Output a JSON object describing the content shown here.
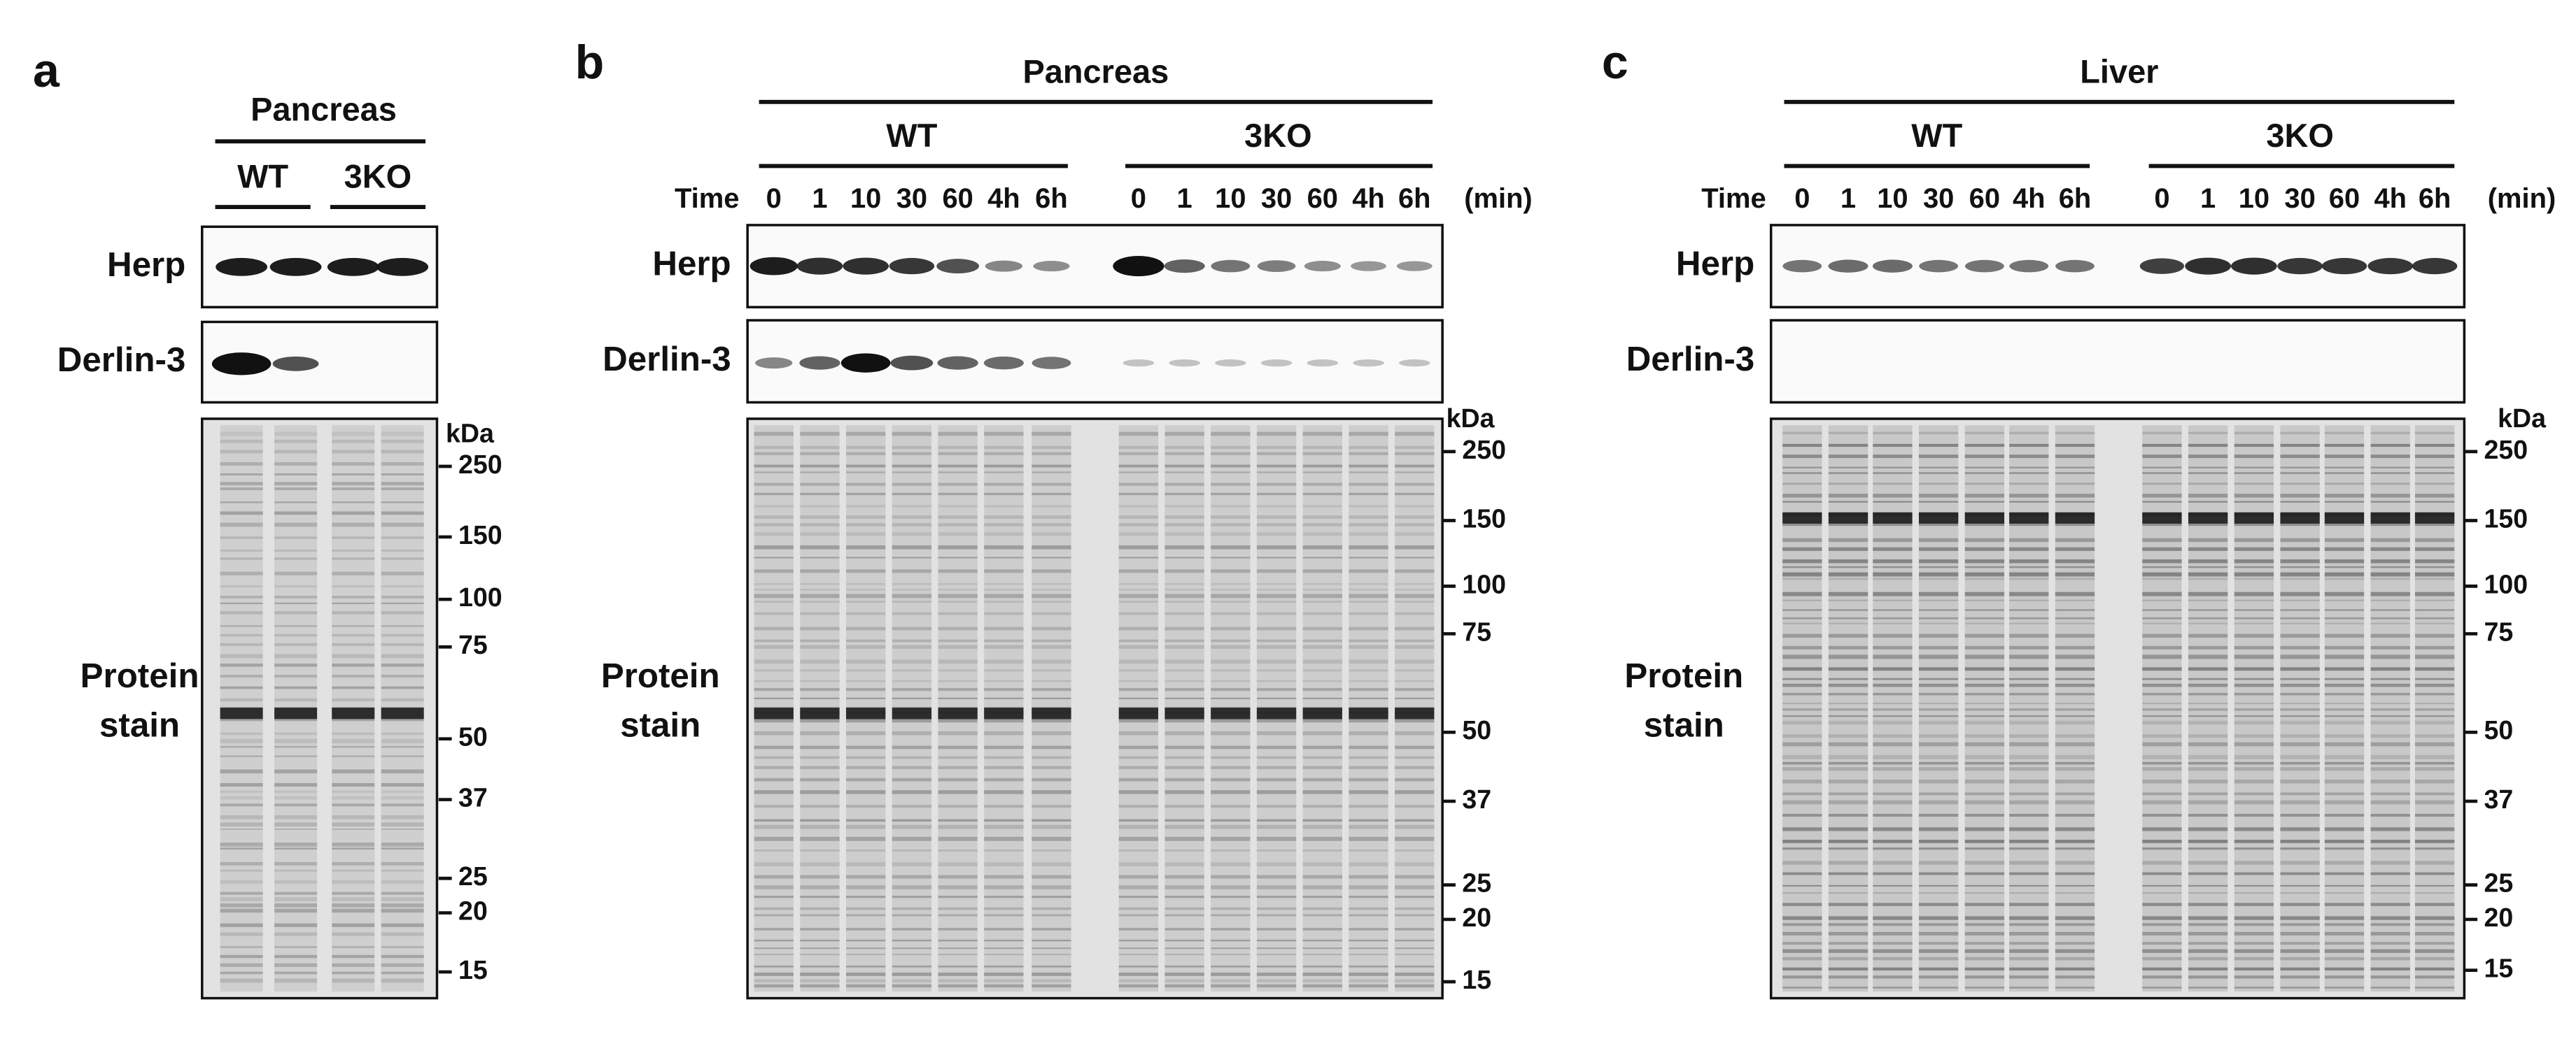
{
  "panels": [
    {
      "label": "a",
      "tissue": "Pancreas",
      "groups": [
        {
          "name": "WT"
        },
        {
          "name": "3KO"
        }
      ],
      "rows": [
        "Herp",
        "Derlin-3"
      ],
      "stain_label": [
        "Protein",
        "stain"
      ],
      "kda_unit": "kDa",
      "markers": [
        250,
        150,
        100,
        75,
        50,
        37,
        25,
        20,
        15
      ]
    },
    {
      "label": "b",
      "tissue": "Pancreas",
      "time_label": "Time",
      "time_unit": "(min)",
      "groups": [
        {
          "name": "WT",
          "timepoints": [
            "0",
            "1",
            "10",
            "30",
            "60",
            "4h",
            "6h"
          ]
        },
        {
          "name": "3KO",
          "timepoints": [
            "0",
            "1",
            "10",
            "30",
            "60",
            "4h",
            "6h"
          ]
        }
      ],
      "rows": [
        "Herp",
        "Derlin-3"
      ],
      "stain_label": [
        "Protein",
        "stain"
      ],
      "kda_unit": "kDa",
      "markers": [
        250,
        150,
        100,
        75,
        50,
        37,
        25,
        20,
        15
      ]
    },
    {
      "label": "c",
      "tissue": "Liver",
      "time_label": "Time",
      "time_unit": "(min)",
      "groups": [
        {
          "name": "WT",
          "timepoints": [
            "0",
            "1",
            "10",
            "30",
            "60",
            "4h",
            "6h"
          ]
        },
        {
          "name": "3KO",
          "timepoints": [
            "0",
            "1",
            "10",
            "30",
            "60",
            "4h",
            "6h"
          ]
        }
      ],
      "rows": [
        "Herp",
        "Derlin-3"
      ],
      "stain_label": [
        "Protein",
        "stain"
      ],
      "kda_unit": "kDa",
      "markers": [
        250,
        150,
        100,
        75,
        50,
        37,
        25,
        20,
        15
      ]
    }
  ]
}
